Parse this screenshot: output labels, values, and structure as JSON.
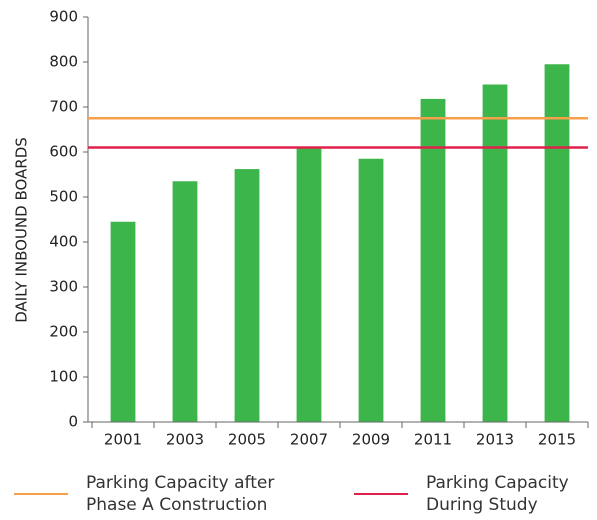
{
  "chart_data": {
    "type": "bar",
    "y_label": "DAILY INBOUND BOARDS",
    "categories": [
      "2001",
      "2003",
      "2005",
      "2007",
      "2009",
      "2011",
      "2013",
      "2015"
    ],
    "values": [
      445,
      535,
      562,
      610,
      585,
      718,
      750,
      795
    ],
    "color": "#3cb54a",
    "ylim": [
      0,
      900
    ],
    "yticks": [
      0,
      100,
      200,
      300,
      400,
      500,
      600,
      700,
      800,
      900
    ],
    "reference_lines": [
      {
        "name": "Parking Capacity after Phase A Construction",
        "value": 675,
        "color": "#f7a04b"
      },
      {
        "name": "Parking Capacity During Study",
        "value": 610,
        "color": "#e0204a"
      }
    ]
  }
}
